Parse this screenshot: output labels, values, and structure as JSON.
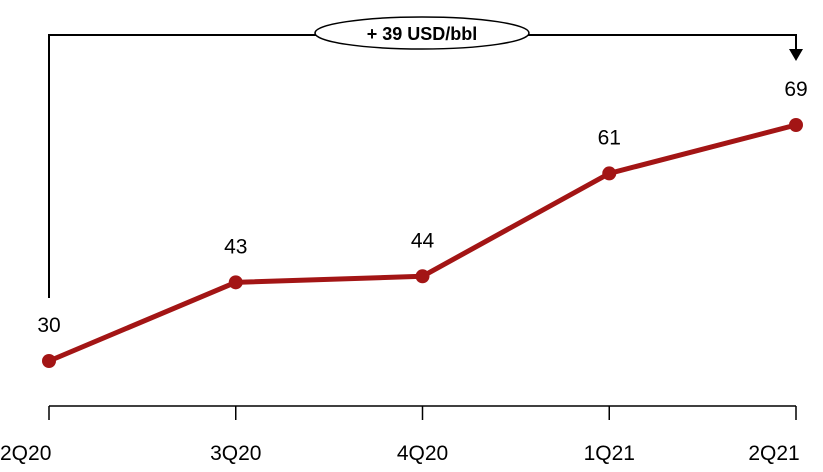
{
  "chart_data": {
    "type": "line",
    "categories": [
      "2Q20",
      "3Q20",
      "4Q20",
      "1Q21",
      "2Q21"
    ],
    "values": [
      30,
      43,
      44,
      61,
      69
    ],
    "data_labels": [
      "30",
      "43",
      "44",
      "61",
      "69"
    ],
    "annotation": "+ 39 USD/bbl",
    "line_color": "#a31515",
    "grid": false,
    "legend": "none"
  }
}
